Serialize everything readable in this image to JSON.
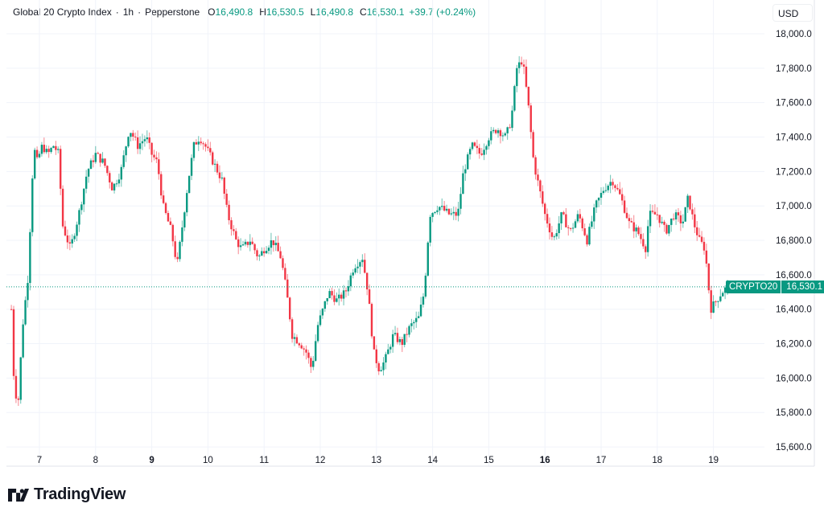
{
  "header": {
    "symbol": "Global 20 Crypto Index",
    "interval": "1h",
    "exchange": "Pepperstone",
    "open_label": "O",
    "open": "16,490.8",
    "high_label": "H",
    "high": "16,530.5",
    "low_label": "L",
    "low": "16,490.8",
    "close_label": "C",
    "close": "16,530.1",
    "change": "+39.7 (+0.24%)"
  },
  "currency": "USD",
  "last_price": {
    "ticker": "CRYPTO20",
    "value": "16,530.1",
    "numeric": 16530.1
  },
  "colors": {
    "up": "#089981",
    "down": "#F23645",
    "grid": "#F0F3FA",
    "text": "#131722",
    "last_line": "#089981"
  },
  "branding": {
    "name": "TradingView"
  },
  "chart_data": {
    "type": "candlestick",
    "title": "Global 20 Crypto Index · 1h · Pepperstone",
    "xlabel": "",
    "ylabel": "USD",
    "ylim": [
      15500,
      18100
    ],
    "y_ticks": [
      15600,
      15800,
      16000,
      16200,
      16400,
      16600,
      16800,
      17000,
      17200,
      17400,
      17600,
      17800,
      18000
    ],
    "y_tick_labels": [
      "15,600.0",
      "15,800.0",
      "16,000.0",
      "16,200.0",
      "16,400.0",
      "16,600.0",
      "16,800.0",
      "17,000.0",
      "17,200.0",
      "17,400.0",
      "17,600.0",
      "17,800.0",
      "18,000.0"
    ],
    "x_ticks": [
      "7",
      "8",
      "9",
      "10",
      "11",
      "12",
      "13",
      "14",
      "15",
      "16",
      "17",
      "18",
      "19"
    ],
    "x_ticks_bold": [
      "9",
      "16"
    ],
    "grid": true,
    "price_path_keypoints": [
      [
        6.5,
        16400
      ],
      [
        6.55,
        15950
      ],
      [
        6.62,
        15850
      ],
      [
        6.7,
        16300
      ],
      [
        6.8,
        16600
      ],
      [
        6.85,
        17000
      ],
      [
        6.9,
        17350
      ],
      [
        6.95,
        17250
      ],
      [
        7.05,
        17350
      ],
      [
        7.15,
        17300
      ],
      [
        7.25,
        17350
      ],
      [
        7.35,
        17300
      ],
      [
        7.4,
        16900
      ],
      [
        7.55,
        16750
      ],
      [
        7.7,
        16950
      ],
      [
        7.85,
        17200
      ],
      [
        8.0,
        17300
      ],
      [
        8.15,
        17250
      ],
      [
        8.3,
        17100
      ],
      [
        8.45,
        17200
      ],
      [
        8.6,
        17450
      ],
      [
        8.75,
        17350
      ],
      [
        8.9,
        17400
      ],
      [
        9.0,
        17300
      ],
      [
        9.1,
        17250
      ],
      [
        9.2,
        17000
      ],
      [
        9.35,
        16850
      ],
      [
        9.45,
        16650
      ],
      [
        9.55,
        16900
      ],
      [
        9.65,
        17150
      ],
      [
        9.75,
        17350
      ],
      [
        9.85,
        17400
      ],
      [
        9.95,
        17350
      ],
      [
        10.1,
        17250
      ],
      [
        10.25,
        17150
      ],
      [
        10.35,
        16950
      ],
      [
        10.5,
        16800
      ],
      [
        10.6,
        16750
      ],
      [
        10.75,
        16800
      ],
      [
        10.9,
        16700
      ],
      [
        11.0,
        16750
      ],
      [
        11.15,
        16800
      ],
      [
        11.3,
        16700
      ],
      [
        11.4,
        16500
      ],
      [
        11.5,
        16250
      ],
      [
        11.65,
        16200
      ],
      [
        11.75,
        16150
      ],
      [
        11.85,
        16050
      ],
      [
        11.95,
        16300
      ],
      [
        12.05,
        16400
      ],
      [
        12.15,
        16500
      ],
      [
        12.3,
        16450
      ],
      [
        12.45,
        16500
      ],
      [
        12.6,
        16650
      ],
      [
        12.75,
        16700
      ],
      [
        12.85,
        16500
      ],
      [
        12.95,
        16150
      ],
      [
        13.05,
        16050
      ],
      [
        13.15,
        16100
      ],
      [
        13.3,
        16250
      ],
      [
        13.45,
        16200
      ],
      [
        13.6,
        16300
      ],
      [
        13.75,
        16350
      ],
      [
        13.85,
        16500
      ],
      [
        13.95,
        16950
      ],
      [
        14.1,
        17000
      ],
      [
        14.3,
        16950
      ],
      [
        14.45,
        16950
      ],
      [
        14.55,
        17200
      ],
      [
        14.7,
        17350
      ],
      [
        14.85,
        17300
      ],
      [
        15.0,
        17400
      ],
      [
        15.15,
        17450
      ],
      [
        15.3,
        17400
      ],
      [
        15.4,
        17500
      ],
      [
        15.5,
        17800
      ],
      [
        15.6,
        17850
      ],
      [
        15.7,
        17600
      ],
      [
        15.8,
        17250
      ],
      [
        15.9,
        17100
      ],
      [
        16.0,
        16950
      ],
      [
        16.15,
        16800
      ],
      [
        16.3,
        16950
      ],
      [
        16.45,
        16850
      ],
      [
        16.6,
        16950
      ],
      [
        16.75,
        16800
      ],
      [
        16.9,
        17000
      ],
      [
        17.05,
        17100
      ],
      [
        17.2,
        17150
      ],
      [
        17.35,
        17050
      ],
      [
        17.5,
        16900
      ],
      [
        17.65,
        16850
      ],
      [
        17.8,
        16750
      ],
      [
        17.85,
        16950
      ],
      [
        18.0,
        16950
      ],
      [
        18.15,
        16850
      ],
      [
        18.3,
        16950
      ],
      [
        18.45,
        16900
      ],
      [
        18.55,
        17050
      ],
      [
        18.65,
        16900
      ],
      [
        18.75,
        16800
      ],
      [
        18.85,
        16750
      ],
      [
        18.95,
        16400
      ],
      [
        19.05,
        16450
      ],
      [
        19.15,
        16500
      ],
      [
        19.25,
        16530
      ]
    ]
  }
}
